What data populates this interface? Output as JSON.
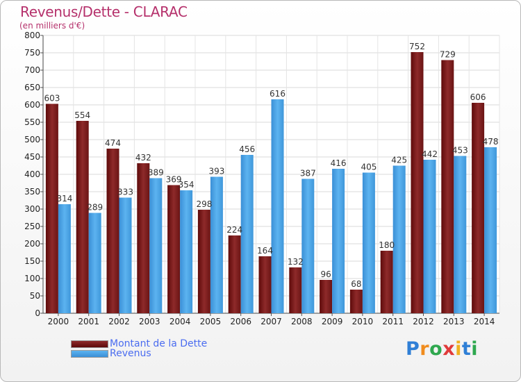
{
  "title": "Revenus/Dette - CLARAC",
  "subtitle": "(en milliers d'€)",
  "legend": {
    "debt_label": "Montant de la Dette",
    "revenue_label": "Revenus"
  },
  "logo_text": "Proxiti",
  "colors": {
    "title": "#b5306b",
    "debt_bar": "#7a1a1a",
    "revenue_bar": "#4aa3e6",
    "legend_text": "#4a6cf0"
  },
  "chart_data": {
    "type": "bar",
    "categories": [
      "2000",
      "2001",
      "2002",
      "2003",
      "2004",
      "2005",
      "2006",
      "2007",
      "2008",
      "2009",
      "2010",
      "2011",
      "2012",
      "2013",
      "2014"
    ],
    "series": [
      {
        "name": "Montant de la Dette",
        "values": [
          603,
          554,
          474,
          432,
          369,
          298,
          224,
          164,
          132,
          96,
          68,
          180,
          752,
          729,
          606
        ]
      },
      {
        "name": "Revenus",
        "values": [
          314,
          289,
          333,
          389,
          354,
          393,
          456,
          616,
          387,
          416,
          405,
          425,
          442,
          453,
          478
        ]
      }
    ],
    "ylim": [
      0,
      800
    ],
    "yticks": [
      0,
      50,
      100,
      150,
      200,
      250,
      300,
      350,
      400,
      450,
      500,
      550,
      600,
      650,
      700,
      750,
      800
    ],
    "grid": true,
    "legend_position": "bottom-left"
  }
}
